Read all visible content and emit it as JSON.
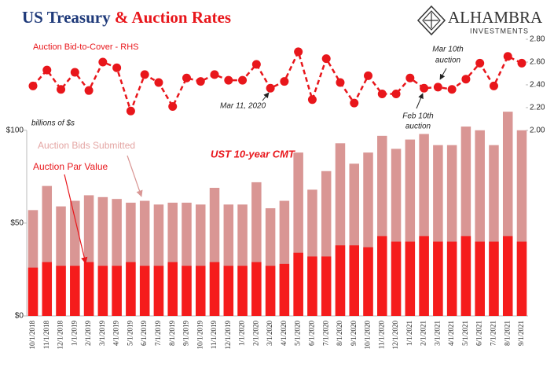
{
  "chart_data": {
    "type": "bar",
    "title": [
      "US Treasury",
      "& Auction Rates"
    ],
    "logo": [
      "ALHAMBRA",
      "INVESTMENTS"
    ],
    "y_label": "billions of $s",
    "categories": [
      "10/1/2018",
      "11/1/2018",
      "12/1/2018",
      "1/1/2019",
      "2/1/2019",
      "3/1/2019",
      "4/1/2019",
      "5/1/2019",
      "6/1/2019",
      "7/1/2019",
      "8/1/2019",
      "9/1/2019",
      "10/1/2019",
      "11/1/2019",
      "12/1/2019",
      "1/1/2020",
      "2/1/2020",
      "3/1/2020",
      "4/1/2020",
      "5/1/2020",
      "6/1/2020",
      "7/1/2020",
      "8/1/2020",
      "9/1/2020",
      "10/1/2020",
      "11/1/2020",
      "12/1/2020",
      "1/1/2021",
      "2/1/2021",
      "3/1/2021",
      "4/1/2021",
      "5/1/2021",
      "6/1/2021",
      "7/1/2021",
      "8/1/2021",
      "9/1/2021"
    ],
    "series": [
      {
        "name": "Auction Bids Submitted",
        "color": "#d99694",
        "values": [
          57,
          70,
          59,
          62,
          65,
          64,
          63,
          61,
          62,
          60,
          61,
          61,
          60,
          69,
          60,
          60,
          72,
          58,
          62,
          88,
          68,
          78,
          93,
          82,
          88,
          97,
          90,
          95,
          98,
          92,
          92,
          102,
          100,
          92,
          110,
          100
        ]
      },
      {
        "name": "Auction Par Value",
        "color": "#f51c1c",
        "values": [
          26,
          29,
          27,
          27,
          29,
          27,
          27,
          29,
          27,
          27,
          29,
          27,
          27,
          29,
          27,
          27,
          29,
          27,
          28,
          34,
          32,
          32,
          38,
          38,
          37,
          43,
          40,
          40,
          43,
          40,
          40,
          43,
          40,
          40,
          43,
          40
        ]
      },
      {
        "name": "Auction Bid-to-Cover - RHS",
        "color": "#e8161b",
        "type": "line",
        "axis": "y2",
        "values": [
          2.39,
          2.53,
          2.36,
          2.51,
          2.35,
          2.6,
          2.55,
          2.17,
          2.49,
          2.42,
          2.21,
          2.46,
          2.43,
          2.49,
          2.44,
          2.44,
          2.58,
          2.37,
          2.43,
          2.69,
          2.27,
          2.63,
          2.42,
          2.24,
          2.48,
          2.32,
          2.32,
          2.46,
          2.37,
          2.38,
          2.36,
          2.45,
          2.59,
          2.39,
          2.65,
          2.59
        ]
      }
    ],
    "ylim": [
      0,
      149
    ],
    "yticks": [
      {
        "value": 0,
        "label": "$0"
      },
      {
        "value": 50,
        "label": "$50"
      },
      {
        "value": 100,
        "label": "$100"
      }
    ],
    "y2lim": [
      0.37,
      2.8
    ],
    "y2ticks": [
      {
        "value": 2.0,
        "label": "2.00"
      },
      {
        "value": 2.2,
        "label": "2.20"
      },
      {
        "value": 2.4,
        "label": "2.40"
      },
      {
        "value": 2.6,
        "label": "2.60"
      },
      {
        "value": 2.8,
        "label": "2.80"
      }
    ],
    "annotations": [
      "UST 10-year CMT",
      "Mar 11, 2020",
      "Feb 10th",
      "auction",
      "Mar 10th",
      "auction"
    ]
  }
}
